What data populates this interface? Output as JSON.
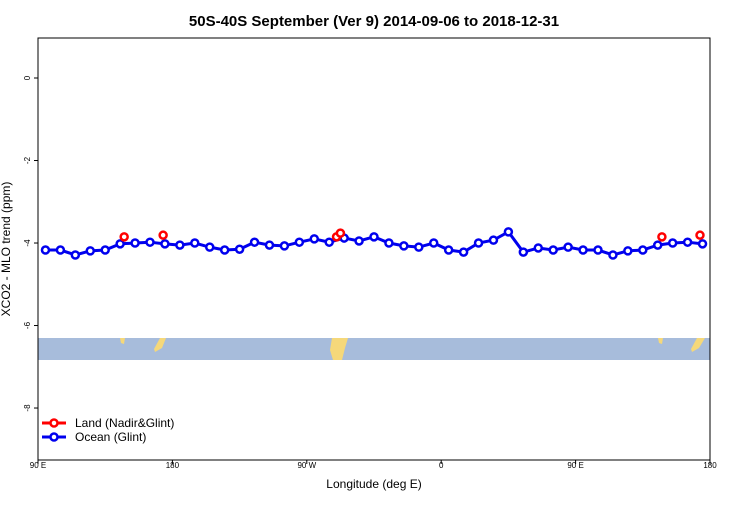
{
  "chart_data": {
    "type": "line",
    "title": "50S-40S September (Ver 9)   2014-09-06 to 2018-12-31",
    "xlabel": "Longitude (deg E)",
    "ylabel": "XCO2 - MLO trend (ppm)",
    "xlim": [
      90,
      540
    ],
    "xticks": [
      {
        "value": 90,
        "label": "90 E"
      },
      180,
      {
        "value": 270,
        "label": "90 W"
      },
      {
        "value": 360,
        "label": "0"
      },
      {
        "value": 450,
        "label": "90 E"
      },
      {
        "value": 540,
        "label": "180"
      }
    ],
    "ylim": [
      -9.26,
      0.97
    ],
    "yticks": [
      0,
      -2,
      -4,
      -6,
      -8
    ],
    "legend": "lower left",
    "series": [
      {
        "name": "Land (Nadir&Glint)",
        "color": "#ff0000",
        "x": [
          147.7,
          173.8,
          289.9,
          292.5,
          507.8,
          533.3
        ],
        "values": [
          -3.85,
          -3.81,
          -3.85,
          -3.76,
          -3.85,
          -3.81
        ]
      },
      {
        "name": "Ocean (Glint)",
        "color": "#0000ee",
        "x": [
          95,
          105,
          115,
          125,
          135,
          145,
          155,
          165,
          175,
          185,
          195,
          205,
          215,
          225,
          235,
          245,
          255,
          265,
          275,
          285,
          295,
          305,
          315,
          325,
          335,
          345,
          355,
          365,
          375,
          385,
          395,
          405,
          415,
          425,
          435,
          445,
          455,
          465,
          475,
          485,
          495,
          505,
          515,
          525,
          535
        ],
        "values": [
          -4.17,
          -4.17,
          -4.29,
          -4.19,
          -4.17,
          -4.02,
          -4.0,
          -3.98,
          -4.02,
          -4.05,
          -4.0,
          -4.1,
          -4.17,
          -4.15,
          -3.98,
          -4.05,
          -4.07,
          -3.98,
          -3.9,
          -3.98,
          -3.88,
          -3.95,
          -3.85,
          -4.0,
          -4.07,
          -4.1,
          -4.0,
          -4.17,
          -4.22,
          -4.0,
          -3.93,
          -3.73,
          -4.22,
          -4.12,
          -4.17,
          -4.1,
          -4.17,
          -4.17,
          -4.29,
          -4.19,
          -4.17,
          -4.05,
          -4.0,
          -3.98,
          -4.02
        ]
      }
    ]
  }
}
